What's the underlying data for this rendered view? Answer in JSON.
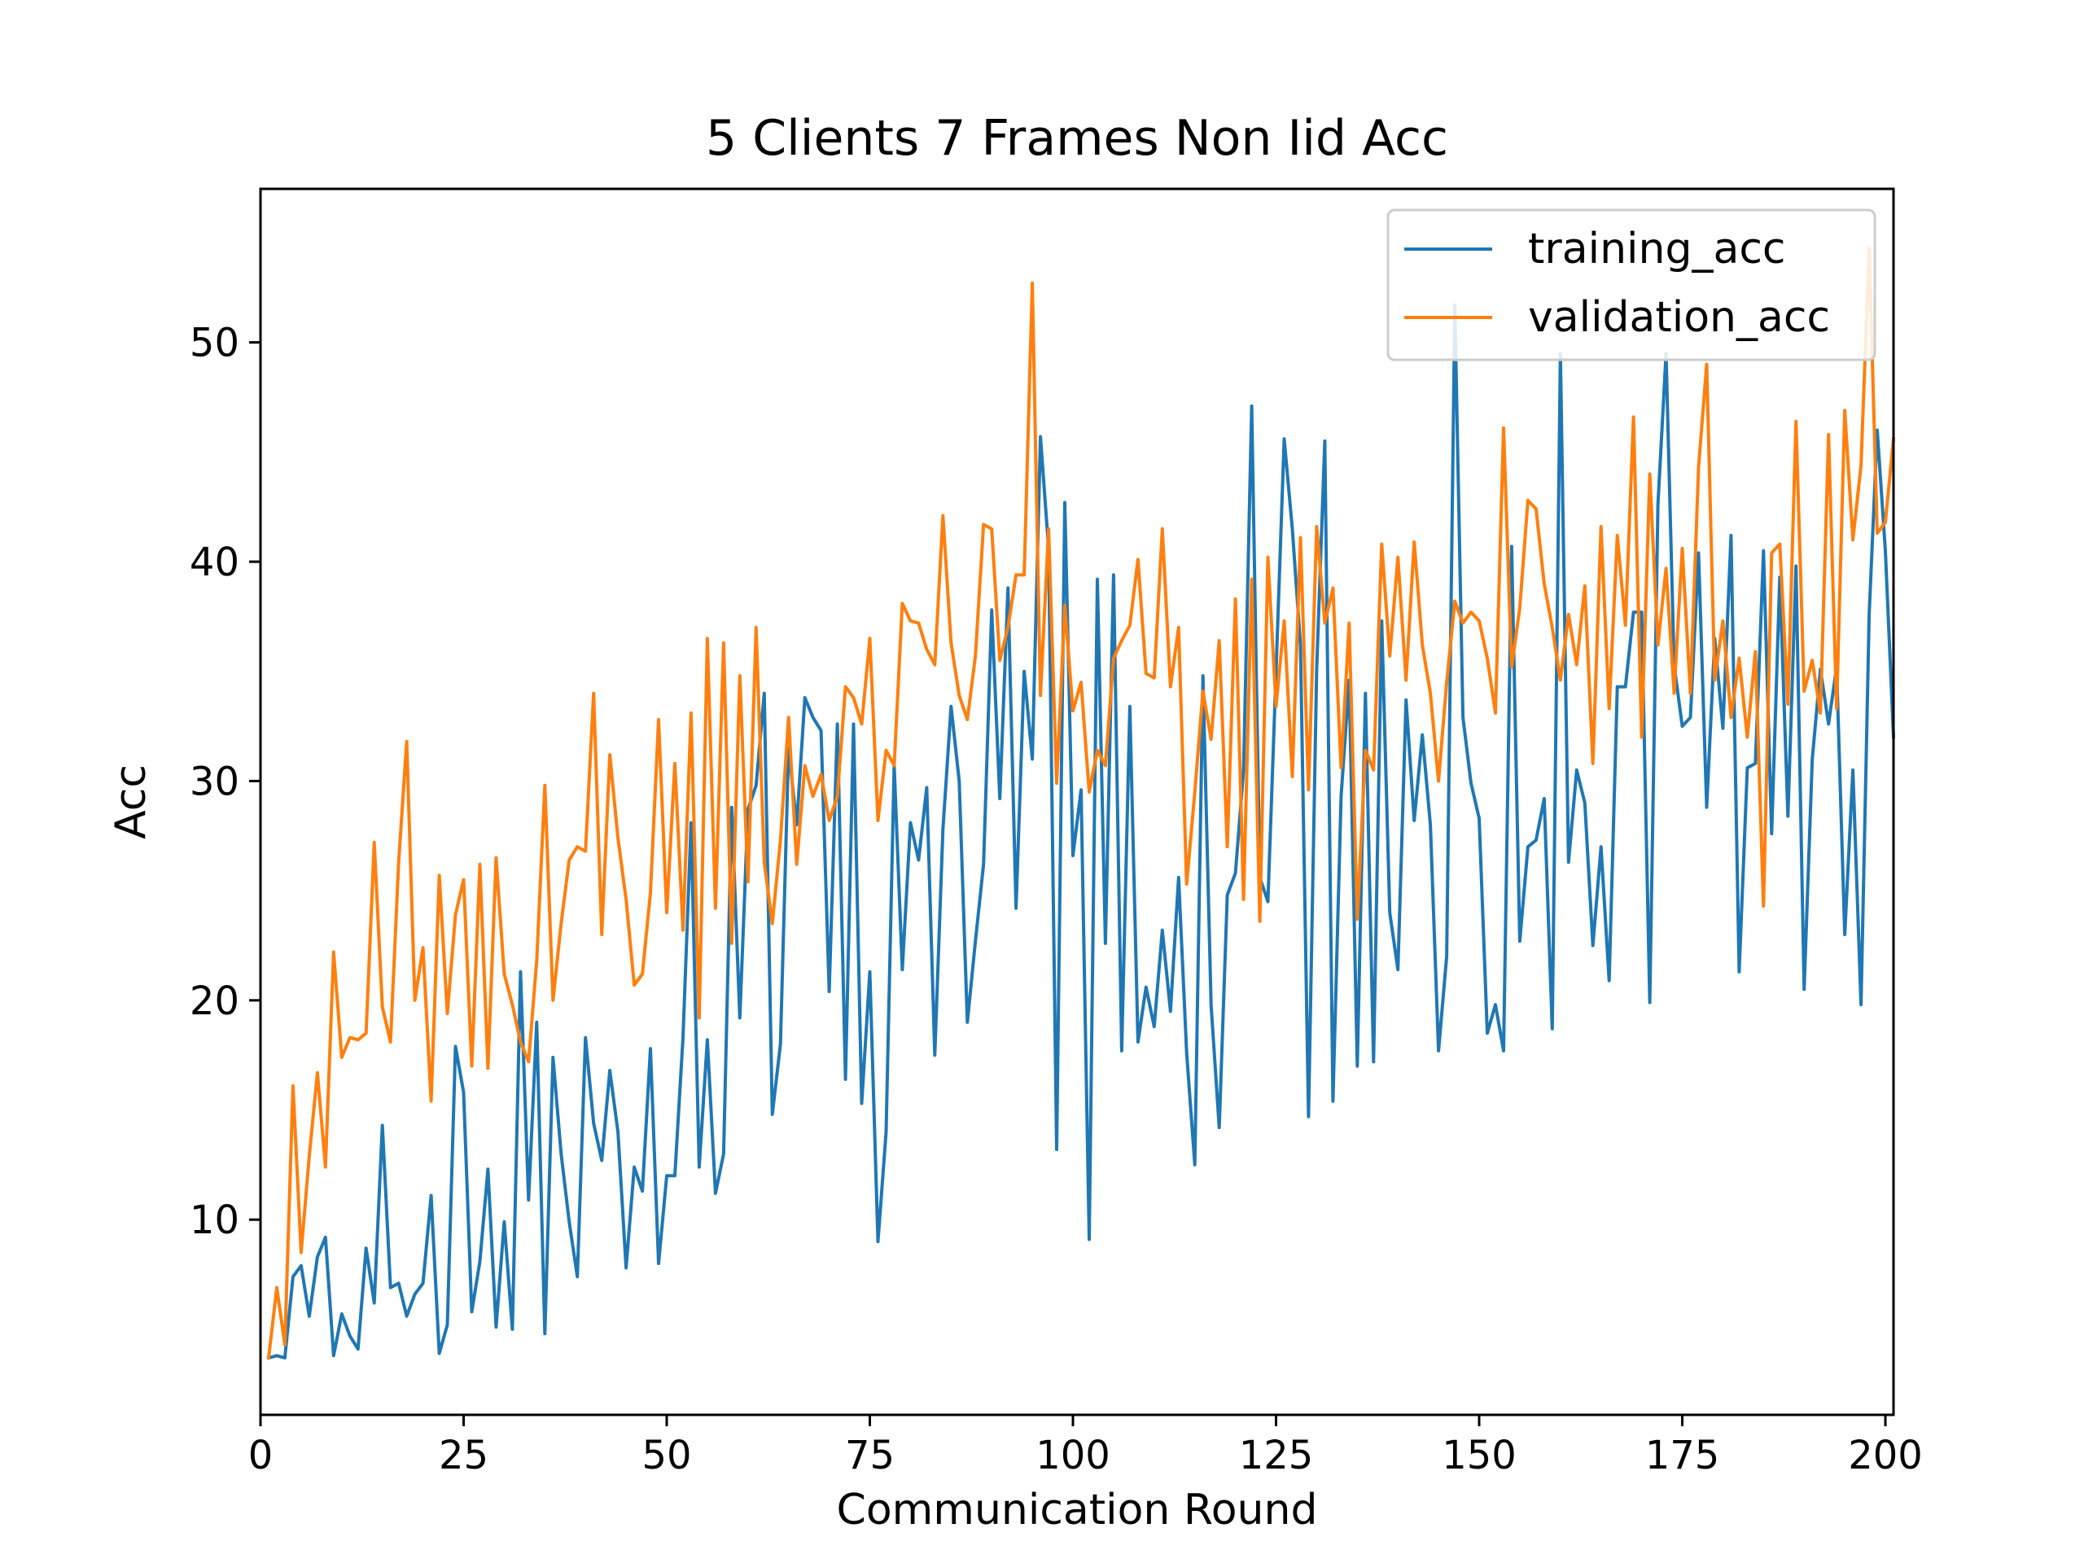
{
  "chart_data": {
    "type": "line",
    "title": "5 Clients 7 Frames Non Iid Acc",
    "xlabel": "Communication Round",
    "ylabel": "Acc",
    "xlim": [
      0,
      201
    ],
    "ylim": [
      1.1,
      57.0
    ],
    "xticks": [
      0,
      25,
      50,
      75,
      100,
      125,
      150,
      175,
      200
    ],
    "yticks": [
      10,
      20,
      30,
      40,
      50
    ],
    "grid": false,
    "legend_position": "top-right",
    "series": [
      {
        "name": "training_acc",
        "color": "#1f77b4",
        "x_start": 1,
        "values": [
          3.7,
          3.8,
          3.7,
          7.4,
          7.9,
          5.6,
          8.3,
          9.2,
          3.8,
          5.7,
          4.7,
          4.1,
          8.7,
          6.2,
          14.3,
          6.9,
          7.1,
          5.6,
          6.6,
          7.1,
          11.1,
          3.9,
          5.2,
          17.9,
          15.8,
          5.8,
          8.1,
          12.3,
          5.1,
          9.9,
          5.0,
          21.3,
          10.9,
          19.0,
          4.8,
          17.4,
          13.0,
          9.9,
          7.4,
          18.3,
          14.4,
          12.7,
          16.8,
          14.0,
          7.8,
          12.4,
          11.3,
          17.8,
          8.0,
          12.0,
          12.0,
          18.3,
          28.1,
          12.4,
          18.2,
          11.2,
          13.0,
          28.8,
          19.2,
          28.7,
          29.8,
          34.0,
          14.8,
          18.0,
          31.5,
          28.0,
          33.8,
          32.9,
          32.3,
          20.4,
          32.6,
          16.4,
          32.6,
          15.3,
          21.3,
          9.0,
          14.0,
          30.7,
          21.4,
          28.1,
          26.4,
          29.7,
          17.5,
          27.8,
          33.4,
          30.0,
          19.0,
          22.7,
          26.2,
          37.8,
          29.2,
          38.8,
          24.2,
          35.0,
          31.0,
          45.7,
          40.6,
          13.2,
          42.7,
          26.6,
          29.6,
          9.1,
          39.2,
          22.6,
          39.4,
          17.7,
          33.4,
          18.1,
          20.6,
          18.8,
          23.2,
          19.5,
          25.6,
          17.6,
          12.5,
          34.8,
          19.8,
          14.2,
          24.8,
          25.8,
          30.5,
          47.1,
          25.6,
          24.5,
          35.0,
          45.6,
          41.5,
          36.2,
          14.7,
          35.1,
          45.5,
          15.4,
          29.3,
          34.6,
          17.0,
          34.0,
          17.2,
          37.3,
          24.0,
          21.4,
          33.7,
          28.2,
          32.1,
          28.0,
          17.7,
          22.0,
          51.7,
          32.9,
          29.9,
          28.3,
          18.5,
          19.8,
          17.7,
          40.7,
          22.7,
          27.0,
          27.3,
          29.2,
          18.7,
          49.5,
          26.3,
          30.5,
          29.0,
          22.5,
          27.0,
          20.9,
          34.3,
          34.3,
          37.7,
          37.7,
          19.9,
          42.6,
          49.5,
          35.3,
          32.5,
          32.9,
          40.4,
          28.8,
          36.5,
          32.4,
          41.2,
          21.3,
          30.6,
          30.8,
          40.5,
          27.6,
          39.3,
          28.4,
          39.8,
          20.5,
          31.0,
          35.1,
          32.6,
          35.2,
          23.0,
          30.5,
          19.8,
          37.6,
          46.0,
          40.5,
          32.0
        ]
      },
      {
        "name": "validation_acc",
        "color": "#ff7f0e",
        "x_start": 1,
        "values": [
          3.7,
          6.9,
          4.3,
          16.1,
          8.5,
          12.9,
          16.7,
          12.4,
          22.2,
          17.4,
          18.3,
          18.2,
          18.5,
          27.2,
          19.7,
          18.1,
          26.3,
          31.8,
          20.0,
          22.4,
          15.4,
          25.7,
          19.4,
          23.9,
          25.5,
          17.0,
          26.2,
          16.9,
          26.5,
          21.2,
          19.8,
          18.1,
          17.2,
          21.8,
          29.8,
          20.0,
          23.5,
          26.4,
          27.0,
          26.8,
          34.0,
          23.0,
          31.2,
          27.4,
          24.6,
          20.7,
          21.2,
          24.9,
          32.8,
          24.0,
          30.8,
          23.2,
          33.1,
          19.2,
          36.5,
          24.2,
          36.3,
          22.6,
          34.8,
          25.4,
          37.0,
          26.3,
          23.5,
          27.3,
          32.9,
          26.2,
          30.7,
          29.3,
          30.3,
          28.2,
          29.3,
          34.3,
          33.8,
          32.6,
          36.5,
          28.2,
          31.4,
          30.7,
          38.1,
          37.3,
          37.2,
          36.0,
          35.3,
          42.1,
          36.3,
          33.9,
          32.8,
          35.7,
          41.7,
          41.5,
          35.5,
          37.0,
          39.4,
          39.4,
          52.7,
          33.9,
          41.5,
          29.9,
          38.0,
          33.2,
          34.5,
          29.5,
          31.4,
          30.7,
          35.6,
          36.4,
          37.1,
          40.1,
          34.9,
          34.7,
          41.5,
          34.3,
          37.0,
          25.3,
          29.5,
          34.1,
          31.9,
          36.4,
          27.0,
          38.3,
          24.6,
          39.2,
          23.6,
          40.2,
          33.4,
          37.3,
          30.2,
          41.1,
          29.6,
          41.6,
          37.2,
          38.8,
          30.6,
          37.2,
          23.7,
          31.4,
          30.5,
          40.8,
          35.7,
          40.2,
          34.6,
          40.9,
          36.2,
          34.0,
          30.0,
          34.5,
          38.2,
          37.2,
          37.7,
          37.3,
          35.6,
          33.1,
          46.1,
          35.2,
          37.9,
          42.8,
          42.4,
          39.0,
          37.0,
          34.6,
          37.6,
          35.3,
          38.9,
          30.8,
          41.6,
          33.3,
          41.2,
          37.1,
          46.6,
          32.0,
          44.0,
          36.2,
          39.7,
          34.0,
          40.6,
          34.0,
          44.3,
          49.0,
          34.6,
          37.3,
          32.9,
          35.6,
          32.0,
          35.9,
          24.3,
          40.4,
          40.8,
          33.5,
          46.4,
          34.1,
          35.5,
          33.1,
          45.8,
          33.3,
          46.9,
          41.0,
          44.4,
          54.3,
          41.3,
          41.8,
          45.6
        ]
      }
    ]
  }
}
